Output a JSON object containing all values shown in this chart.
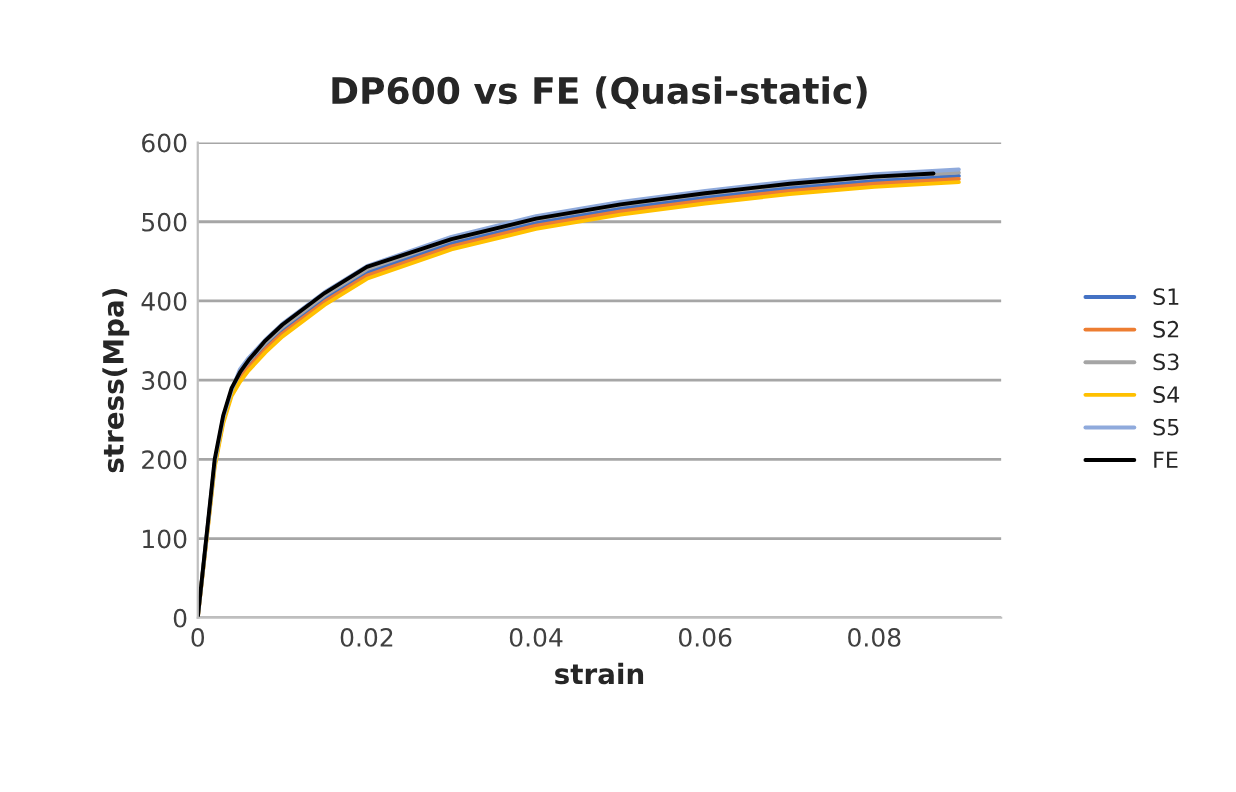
{
  "chart_data": {
    "type": "line",
    "title": "DP600 vs FE (Quasi-static)",
    "xlabel": "strain",
    "ylabel": "stress(Mpa)",
    "xlim": [
      0,
      0.095
    ],
    "xticks": [
      0,
      0.02,
      0.04,
      0.06,
      0.08
    ],
    "ylim": [
      0,
      600
    ],
    "yticks": [
      0,
      100,
      200,
      300,
      400,
      500,
      600
    ],
    "grid": "y",
    "legend": "right",
    "marker": "none",
    "line_style": "solid",
    "series": [
      {
        "name": "S1",
        "color": "#4472c4",
        "x": [
          0.002,
          0.003,
          0.004,
          0.005,
          0.006,
          0.008,
          0.01,
          0.015,
          0.02,
          0.03,
          0.04,
          0.05,
          0.06,
          0.07,
          0.08,
          0.09
        ],
        "values": [
          194,
          250,
          284,
          306,
          320,
          343,
          363,
          403,
          436,
          473,
          499,
          517,
          531,
          543,
          552,
          558
        ]
      },
      {
        "name": "S2",
        "color": "#ed7d31",
        "x": [
          0,
          0.001,
          0.002,
          0.003,
          0.004,
          0.005,
          0.006,
          0.008,
          0.01,
          0.015,
          0.02,
          0.03,
          0.04,
          0.05,
          0.06,
          0.07,
          0.08,
          0.09
        ],
        "values": [
          0,
          96,
          193,
          248,
          283,
          302,
          316,
          339,
          359,
          399,
          432,
          469,
          495,
          513,
          527,
          539,
          548,
          554
        ]
      },
      {
        "name": "S3",
        "color": "#a5a5a5",
        "x": [
          0,
          0.001,
          0.002,
          0.003,
          0.004,
          0.005,
          0.006,
          0.008,
          0.01,
          0.015,
          0.02,
          0.03,
          0.04,
          0.05,
          0.06,
          0.07,
          0.08,
          0.09
        ],
        "values": [
          0,
          97,
          195,
          251,
          285,
          310,
          324,
          347,
          367,
          407,
          440,
          477,
          503,
          521,
          535,
          547,
          556,
          562
        ]
      },
      {
        "name": "S4",
        "color": "#ffc000",
        "x": [
          0,
          0.001,
          0.002,
          0.003,
          0.004,
          0.005,
          0.006,
          0.008,
          0.01,
          0.015,
          0.02,
          0.03,
          0.04,
          0.05,
          0.06,
          0.07,
          0.08,
          0.09
        ],
        "values": [
          0,
          95,
          190,
          245,
          280,
          298,
          312,
          335,
          355,
          395,
          428,
          465,
          491,
          509,
          523,
          535,
          544,
          550
        ]
      },
      {
        "name": "S5",
        "color": "#8faadc",
        "x": [
          0,
          0.001,
          0.002,
          0.003,
          0.004,
          0.005,
          0.006,
          0.008,
          0.01,
          0.015,
          0.02,
          0.03,
          0.04,
          0.05,
          0.06,
          0.07,
          0.08,
          0.09
        ],
        "values": [
          0,
          98,
          196,
          252,
          287,
          314,
          328,
          351,
          371,
          411,
          444,
          481,
          507,
          525,
          539,
          551,
          560,
          566
        ]
      },
      {
        "name": "FE",
        "color": "#000000",
        "x": [
          0,
          0.001,
          0.002,
          0.003,
          0.004,
          0.005,
          0.006,
          0.008,
          0.01,
          0.015,
          0.02,
          0.03,
          0.04,
          0.05,
          0.06,
          0.07,
          0.08,
          0.087
        ],
        "values": [
          0,
          100,
          200,
          255,
          290,
          310,
          325,
          350,
          370,
          410,
          443,
          478,
          504,
          522,
          536,
          548,
          557,
          561
        ]
      }
    ]
  }
}
